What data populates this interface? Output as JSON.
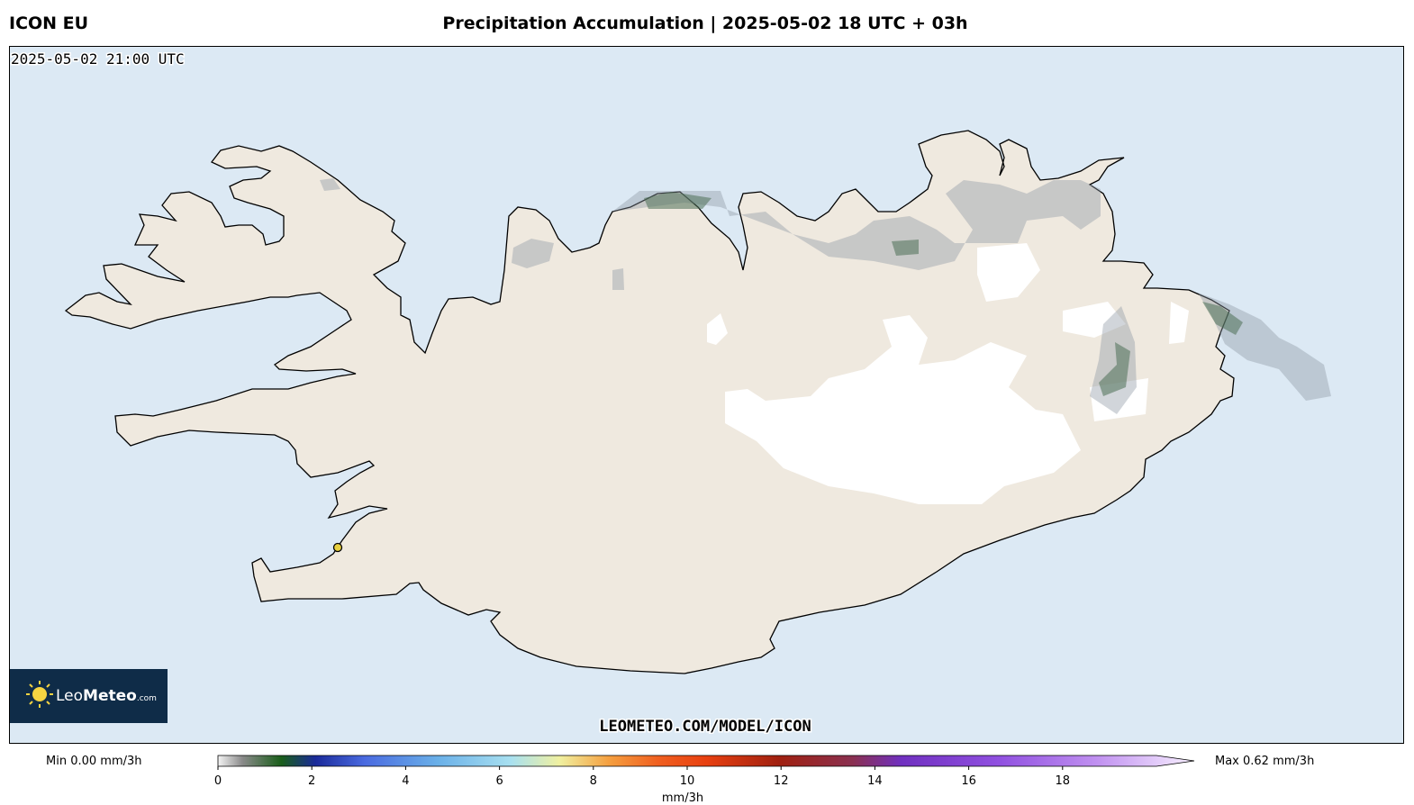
{
  "header": {
    "model": "ICON EU",
    "title": "Precipitation Accumulation | 2025-05-02 18 UTC + 03h"
  },
  "map": {
    "valid_time": "2025-05-02 21:00 UTC",
    "watermark": "LEOMETEO.COM/MODEL/ICON",
    "logo": {
      "leo": "Leo",
      "meteo": "Meteo",
      "com": ".com"
    }
  },
  "colorbar": {
    "min_label": "Min 0.00 mm/3h",
    "max_label": "Max 0.62 mm/3h",
    "unit": "mm/3h",
    "range": [
      0,
      20
    ],
    "ticks": [
      0,
      2,
      4,
      6,
      8,
      10,
      12,
      14,
      16,
      18
    ]
  }
}
